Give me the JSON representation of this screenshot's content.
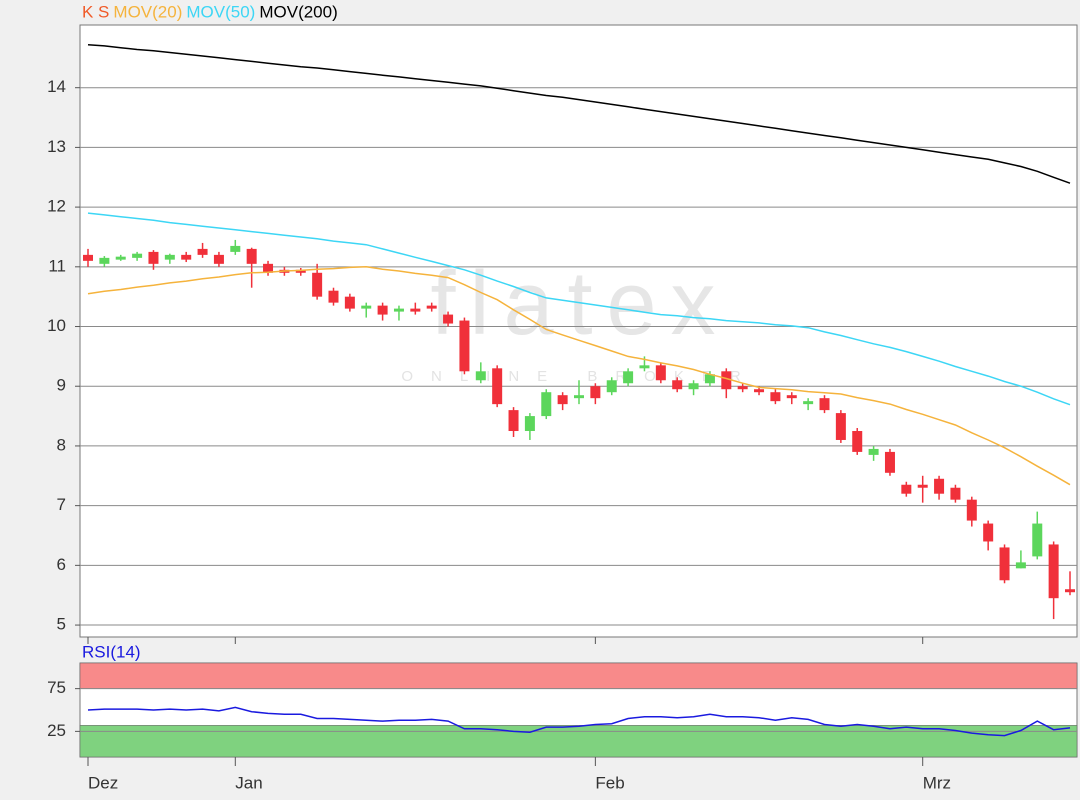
{
  "chart_data": [
    {
      "type": "candlestick",
      "legend_label": "K S",
      "legend_color": "#f05a28",
      "categories": [
        "Dez",
        null,
        null,
        null,
        null,
        null,
        null,
        null,
        null,
        "Jan",
        null,
        null,
        null,
        null,
        null,
        null,
        null,
        null,
        null,
        null,
        null,
        null,
        null,
        null,
        null,
        null,
        null,
        null,
        null,
        null,
        null,
        "Feb",
        null,
        null,
        null,
        null,
        null,
        null,
        null,
        null,
        null,
        null,
        null,
        null,
        null,
        null,
        null,
        null,
        null,
        null,
        null,
        "Mrz",
        null,
        null,
        null,
        null,
        null,
        null,
        null,
        null,
        null
      ],
      "open": [
        11.2,
        11.05,
        11.12,
        11.15,
        11.25,
        11.12,
        11.2,
        11.3,
        11.2,
        11.25,
        11.3,
        11.05,
        10.95,
        10.95,
        10.9,
        10.6,
        10.5,
        10.3,
        10.35,
        10.25,
        10.3,
        10.35,
        10.2,
        10.1,
        9.1,
        9.3,
        8.6,
        8.25,
        8.5,
        8.85,
        8.8,
        9.0,
        8.9,
        9.05,
        9.3,
        9.35,
        9.1,
        8.95,
        9.05,
        9.25,
        9.0,
        8.95,
        8.9,
        8.85,
        8.7,
        8.8,
        8.55,
        8.25,
        7.85,
        7.9,
        7.35,
        7.35,
        7.45,
        7.3,
        7.1,
        6.7,
        6.3,
        5.95,
        6.15,
        6.35,
        5.6
      ],
      "high": [
        11.3,
        11.18,
        11.2,
        11.25,
        11.28,
        11.22,
        11.25,
        11.4,
        11.25,
        11.45,
        11.32,
        11.1,
        11.0,
        10.98,
        11.05,
        10.65,
        10.55,
        10.4,
        10.4,
        10.35,
        10.4,
        10.4,
        10.25,
        10.15,
        9.4,
        9.35,
        8.65,
        8.55,
        8.95,
        8.9,
        9.1,
        9.05,
        9.15,
        9.3,
        9.5,
        9.4,
        9.15,
        9.1,
        9.25,
        9.3,
        9.05,
        9.0,
        8.95,
        8.9,
        8.8,
        8.85,
        8.6,
        8.3,
        8.0,
        7.95,
        7.4,
        7.5,
        7.5,
        7.35,
        7.15,
        6.75,
        6.35,
        6.25,
        6.9,
        6.4,
        5.9
      ],
      "low": [
        11.0,
        11.0,
        11.1,
        11.1,
        10.95,
        11.05,
        11.08,
        11.15,
        11.0,
        11.2,
        10.65,
        10.85,
        10.85,
        10.85,
        10.45,
        10.35,
        10.25,
        10.15,
        10.1,
        10.1,
        10.2,
        10.25,
        10.0,
        9.2,
        9.05,
        8.65,
        8.15,
        8.1,
        8.45,
        8.6,
        8.7,
        8.7,
        8.85,
        9.0,
        9.25,
        9.05,
        8.9,
        8.85,
        9.0,
        8.8,
        8.9,
        8.85,
        8.7,
        8.7,
        8.6,
        8.55,
        8.05,
        7.85,
        7.75,
        7.5,
        7.15,
        7.05,
        7.1,
        7.05,
        6.65,
        6.25,
        5.7,
        5.95,
        6.1,
        5.1,
        5.5
      ],
      "close": [
        11.1,
        11.15,
        11.17,
        11.22,
        11.05,
        11.2,
        11.12,
        11.2,
        11.05,
        11.35,
        11.05,
        10.9,
        10.9,
        10.9,
        10.5,
        10.4,
        10.3,
        10.35,
        10.2,
        10.3,
        10.25,
        10.3,
        10.05,
        9.25,
        9.25,
        8.7,
        8.25,
        8.5,
        8.9,
        8.7,
        8.85,
        8.8,
        9.1,
        9.25,
        9.35,
        9.1,
        8.95,
        9.05,
        9.2,
        8.95,
        8.95,
        8.9,
        8.75,
        8.8,
        8.75,
        8.6,
        8.1,
        7.9,
        7.95,
        7.55,
        7.2,
        7.3,
        7.2,
        7.1,
        6.75,
        6.4,
        5.75,
        6.05,
        6.7,
        5.45,
        5.55
      ],
      "up_color": "#5cd65c",
      "down_color": "#f0303a",
      "series": [
        {
          "name": "MOV(20)",
          "color": "#f5b33c",
          "values": [
            10.55,
            10.59,
            10.62,
            10.66,
            10.69,
            10.73,
            10.76,
            10.8,
            10.83,
            10.87,
            10.9,
            10.91,
            10.93,
            10.94,
            10.96,
            10.97,
            10.99,
            11.0,
            10.96,
            10.93,
            10.89,
            10.86,
            10.82,
            10.7,
            10.57,
            10.45,
            10.28,
            10.12,
            9.95,
            9.86,
            9.77,
            9.68,
            9.59,
            9.5,
            9.45,
            9.39,
            9.34,
            9.28,
            9.2,
            9.13,
            9.05,
            8.98,
            8.96,
            8.94,
            8.91,
            8.89,
            8.87,
            8.81,
            8.76,
            8.7,
            8.61,
            8.53,
            8.44,
            8.35,
            8.22,
            8.1,
            7.97,
            7.82,
            7.66,
            7.51,
            7.35
          ]
        },
        {
          "name": "MOV(50)",
          "color": "#3dd6f5",
          "values": [
            11.9,
            11.87,
            11.84,
            11.81,
            11.78,
            11.74,
            11.71,
            11.68,
            11.65,
            11.62,
            11.59,
            11.56,
            11.53,
            11.5,
            11.47,
            11.43,
            11.4,
            11.37,
            11.3,
            11.23,
            11.16,
            11.09,
            11.02,
            10.95,
            10.86,
            10.76,
            10.67,
            10.57,
            10.48,
            10.44,
            10.4,
            10.36,
            10.32,
            10.28,
            10.24,
            10.2,
            10.18,
            10.15,
            10.13,
            10.1,
            10.08,
            10.06,
            10.03,
            10.01,
            9.98,
            9.91,
            9.85,
            9.78,
            9.71,
            9.65,
            9.58,
            9.5,
            9.42,
            9.33,
            9.25,
            9.17,
            9.08,
            9.0,
            8.9,
            8.79,
            8.69
          ]
        },
        {
          "name": "MOV(200)",
          "color": "#000000",
          "values": [
            14.72,
            14.7,
            14.67,
            14.64,
            14.62,
            14.59,
            14.56,
            14.53,
            14.5,
            14.47,
            14.44,
            14.41,
            14.38,
            14.35,
            14.33,
            14.3,
            14.27,
            14.24,
            14.21,
            14.18,
            14.15,
            14.12,
            14.09,
            14.06,
            14.03,
            13.99,
            13.95,
            13.91,
            13.87,
            13.84,
            13.8,
            13.76,
            13.72,
            13.68,
            13.64,
            13.6,
            13.56,
            13.52,
            13.48,
            13.44,
            13.4,
            13.36,
            13.32,
            13.28,
            13.24,
            13.2,
            13.16,
            13.12,
            13.08,
            13.04,
            13.0,
            12.96,
            12.92,
            12.88,
            12.84,
            12.8,
            12.74,
            12.68,
            12.6,
            12.5,
            12.4
          ]
        }
      ],
      "ylim": [
        4.8,
        15.05
      ],
      "yticks": [
        5,
        6,
        7,
        8,
        9,
        10,
        11,
        12,
        13,
        14
      ],
      "grid": true,
      "watermark": "flatex",
      "watermark_sub": "ONLINE BROKER"
    },
    {
      "type": "line",
      "series": [
        {
          "name": "RSI(14)",
          "color": "#1a1adf",
          "values": [
            50,
            51,
            51,
            51,
            50,
            51,
            50,
            51,
            49,
            53,
            48,
            46,
            45,
            45,
            40,
            40,
            39,
            38,
            37,
            38,
            38,
            39,
            37,
            28,
            28,
            27,
            25,
            24,
            30,
            30,
            31,
            33,
            34,
            40,
            42,
            42,
            41,
            42,
            45,
            42,
            42,
            41,
            38,
            41,
            39,
            33,
            31,
            33,
            31,
            28,
            30,
            28,
            28,
            26,
            23,
            21,
            20,
            26,
            37,
            27,
            29
          ]
        }
      ],
      "bands": [
        {
          "from": 75,
          "to": 105,
          "color": "#f88a8a"
        },
        {
          "from": -5,
          "to": 32,
          "color": "#7fd27f"
        }
      ],
      "ylim": [
        -5,
        105
      ],
      "yticks": [
        25,
        75
      ],
      "grid": true
    }
  ]
}
